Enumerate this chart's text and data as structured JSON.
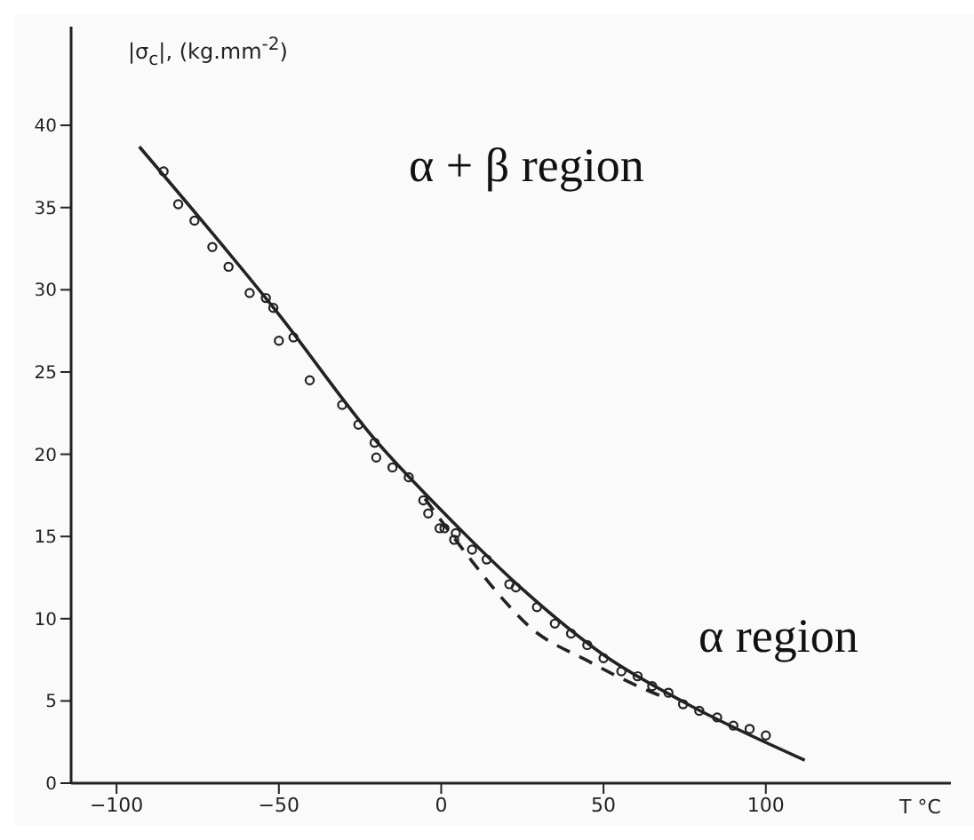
{
  "chart_data": {
    "type": "scatter",
    "xlabel": "T °C",
    "ylabel": "|σ$_{c}$|, (kg.mm$^{-2}$)",
    "annotations": [
      "α + β region",
      "α region"
    ],
    "xlim": [
      -114,
      157
    ],
    "ylim": [
      0,
      46
    ],
    "xticks": [
      -100,
      -50,
      0,
      50,
      100
    ],
    "yticks": [
      0,
      5,
      10,
      15,
      20,
      25,
      30,
      35,
      40
    ],
    "grid": false,
    "legend": false,
    "series": [
      {
        "marker": "circle",
        "color": "#222222",
        "x": [
          -85.5,
          -81,
          -76,
          -70.5,
          -65.5,
          -59,
          -54,
          -51.7,
          -50,
          -45.5,
          -40.5,
          -30.5,
          -25.5,
          -20.5,
          -20,
          -15,
          -10,
          -5.5,
          -4,
          -0.5,
          1,
          4.5,
          4,
          9.5,
          14,
          21,
          23,
          29.5,
          35,
          40,
          45,
          50,
          55.5,
          60.5,
          65,
          70,
          74.5,
          79.5,
          85,
          90,
          95,
          100
        ],
        "values": [
          37.2,
          35.2,
          34.2,
          32.6,
          31.4,
          29.8,
          29.5,
          28.9,
          26.9,
          27.1,
          24.5,
          23,
          21.8,
          20.7,
          19.8,
          19.2,
          18.6,
          17.2,
          16.4,
          15.5,
          15.5,
          15.2,
          14.8,
          14.2,
          13.6,
          12.1,
          11.9,
          10.7,
          9.7,
          9.1,
          8.4,
          7.6,
          6.8,
          6.5,
          5.9,
          5.5,
          4.8,
          4.4,
          4,
          3.5,
          3.3,
          2.9
        ]
      },
      {
        "type": "line",
        "marker": "none",
        "line_style": "solid",
        "color": "#222222",
        "x": [
          -93,
          -50,
          -20,
          0,
          25,
          50,
          75,
          112
        ],
        "values": [
          38.7,
          28.5,
          20.8,
          16.6,
          11.8,
          7.8,
          4.9,
          1.4
        ]
      },
      {
        "type": "line",
        "marker": "none",
        "line_style": "dashed",
        "color": "#222222",
        "x": [
          -5,
          8.3,
          19.4,
          26.7,
          45.5,
          64,
          69
        ],
        "values": [
          17.3,
          13.8,
          11.1,
          9.6,
          7.4,
          5.6,
          5.2
        ]
      }
    ]
  }
}
